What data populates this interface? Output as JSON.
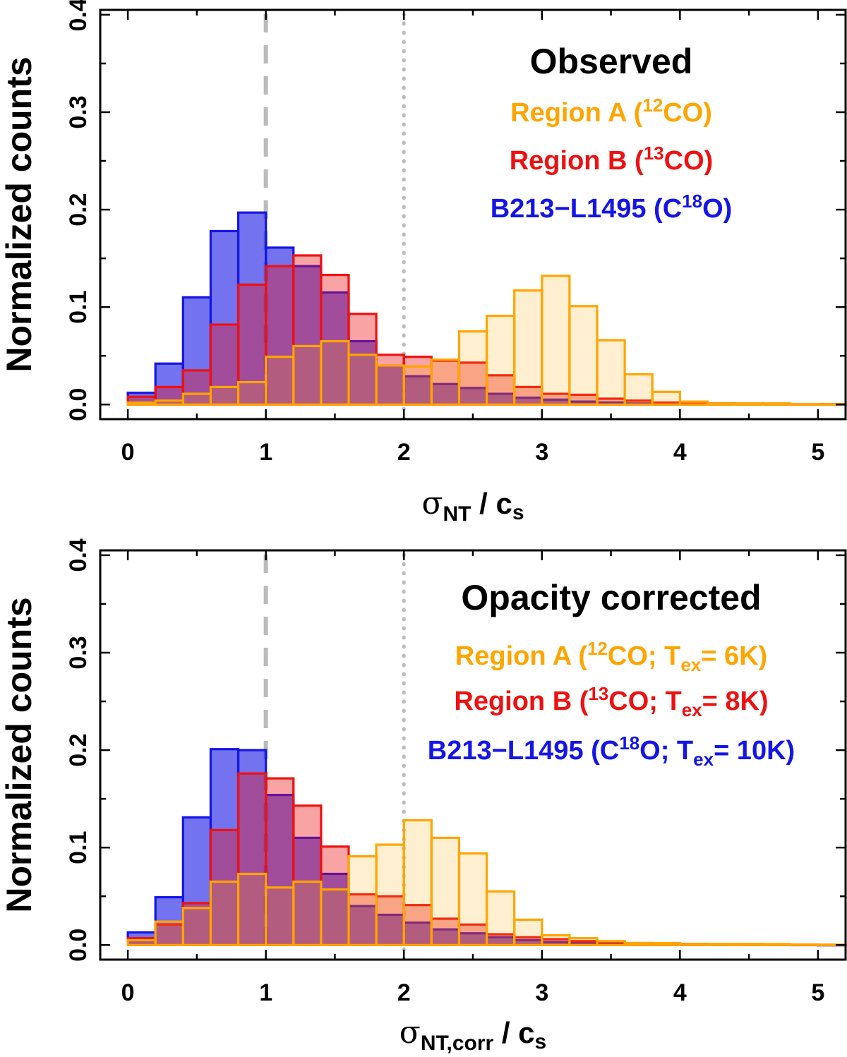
{
  "colors": {
    "regionA": "#FFA500",
    "regionB": "#EE1111",
    "b213": "#1515E6",
    "axis": "#000000",
    "refline": "#BBBBBB"
  },
  "chart_data": [
    {
      "type": "histogram",
      "title": "Observed",
      "ylabel": "Normalized counts",
      "xlabel": {
        "symbol": "σ",
        "sub": "NT",
        "suffix": " / c",
        "suffix_sub": "s"
      },
      "xlim": [
        -0.2,
        5.2
      ],
      "ylim": [
        -0.015,
        0.405
      ],
      "xticks": [
        0,
        1,
        2,
        3,
        4,
        5
      ],
      "yticks": [
        "0.0",
        "0.1",
        "0.2",
        "0.3",
        "0.4"
      ],
      "reference_lines": [
        {
          "x": 1,
          "style": "dashed"
        },
        {
          "x": 2,
          "style": "dotted"
        }
      ],
      "bin_start": 0,
      "bin_width": 0.2,
      "series": [
        {
          "name": "B213-L1495",
          "legend": {
            "pre": "B213−L1495 (C",
            "sup": "18",
            "post": "O)"
          },
          "color_key": "b213",
          "values": [
            0.012,
            0.042,
            0.11,
            0.178,
            0.197,
            0.161,
            0.142,
            0.115,
            0.065,
            0.04,
            0.029,
            0.021,
            0.017,
            0.011,
            0.007,
            0.005,
            0.003,
            0.002,
            0.001,
            0.001,
            0.001,
            0.001,
            0.0005,
            0.0005,
            0.0003,
            0.0002
          ]
        },
        {
          "name": "Region B",
          "legend": {
            "pre": "Region B (",
            "sup": "13",
            "post": "CO)"
          },
          "color_key": "regionB",
          "values": [
            0.008,
            0.018,
            0.035,
            0.082,
            0.123,
            0.142,
            0.153,
            0.133,
            0.093,
            0.051,
            0.049,
            0.045,
            0.043,
            0.03,
            0.018,
            0.011,
            0.01,
            0.006,
            0.004,
            0.002,
            0.001,
            0.001,
            0.001,
            0.001,
            0.0005,
            0.0003
          ]
        },
        {
          "name": "Region A",
          "legend": {
            "pre": "Region A (",
            "sup": "12",
            "post": "CO)"
          },
          "color_key": "regionA",
          "values": [
            0.002,
            0.004,
            0.011,
            0.018,
            0.023,
            0.049,
            0.06,
            0.065,
            0.051,
            0.04,
            0.039,
            0.046,
            0.075,
            0.091,
            0.117,
            0.132,
            0.101,
            0.066,
            0.031,
            0.013,
            0.003,
            0.001,
            0.001,
            0.001,
            0.0005,
            0.0003
          ]
        }
      ]
    },
    {
      "type": "histogram",
      "title": "Opacity corrected",
      "ylabel": "Normalized counts",
      "xlabel": {
        "symbol": "σ",
        "sub": "NT,corr",
        "suffix": " / c",
        "suffix_sub": "s"
      },
      "xlim": [
        -0.2,
        5.2
      ],
      "ylim": [
        -0.015,
        0.405
      ],
      "xticks": [
        0,
        1,
        2,
        3,
        4,
        5
      ],
      "yticks": [
        "0.0",
        "0.1",
        "0.2",
        "0.3",
        "0.4"
      ],
      "reference_lines": [
        {
          "x": 1,
          "style": "dashed"
        },
        {
          "x": 2,
          "style": "dotted"
        }
      ],
      "bin_start": 0,
      "bin_width": 0.2,
      "series": [
        {
          "name": "B213-L1495",
          "legend": {
            "pre": "B213−L1495 (C",
            "sup": "18",
            "post": "O; T",
            "sub": "ex",
            "post2": "= 10K)"
          },
          "color_key": "b213",
          "values": [
            0.013,
            0.049,
            0.131,
            0.201,
            0.2,
            0.154,
            0.11,
            0.073,
            0.04,
            0.031,
            0.023,
            0.016,
            0.012,
            0.008,
            0.005,
            0.003,
            0.002,
            0.001,
            0.001,
            0.001,
            0.001,
            0.0005,
            0.0005,
            0.0003,
            0.0002,
            0.0001
          ]
        },
        {
          "name": "Region B",
          "legend": {
            "pre": "Region B (",
            "sup": "13",
            "post": "CO; T",
            "sub": "ex",
            "post2": "= 8K)"
          },
          "color_key": "regionB",
          "values": [
            0.007,
            0.021,
            0.043,
            0.118,
            0.176,
            0.171,
            0.143,
            0.101,
            0.052,
            0.05,
            0.041,
            0.027,
            0.021,
            0.011,
            0.008,
            0.006,
            0.004,
            0.003,
            0.002,
            0.001,
            0.001,
            0.001,
            0.001,
            0.0005,
            0.0003,
            0.0002
          ]
        },
        {
          "name": "Region A",
          "legend": {
            "pre": "Region A (",
            "sup": "12",
            "post": "CO; T",
            "sub": "ex",
            "post2": "= 6K)"
          },
          "color_key": "regionA",
          "values": [
            0.005,
            0.024,
            0.038,
            0.065,
            0.073,
            0.059,
            0.065,
            0.057,
            0.091,
            0.103,
            0.128,
            0.11,
            0.094,
            0.055,
            0.026,
            0.01,
            0.007,
            0.004,
            0.002,
            0.002,
            0.001,
            0.001,
            0.001,
            0.001,
            0.0005,
            0.0003
          ]
        }
      ]
    }
  ]
}
